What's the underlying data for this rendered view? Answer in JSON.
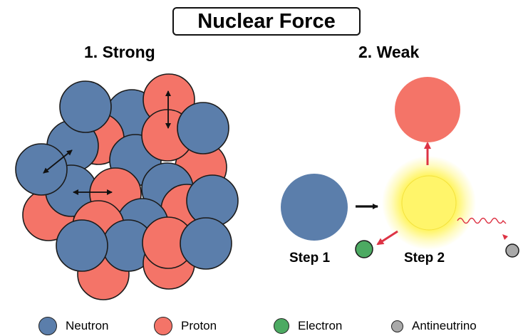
{
  "title": "Nuclear Force",
  "sections": {
    "strong": "1. Strong",
    "weak": "2. Weak"
  },
  "steps": {
    "step1": "Step 1",
    "step2": "Step 2"
  },
  "colors": {
    "neutron": "#5b7eab",
    "proton": "#f47468",
    "electron": "#4caa62",
    "antineutrino": "#a9a9a9",
    "glow": "#fff34d",
    "red_arrow": "#dd3344"
  },
  "legend": [
    {
      "label": "Neutron",
      "color": "#5b7eab"
    },
    {
      "label": "Proton",
      "color": "#f47468"
    },
    {
      "label": "Electron",
      "color": "#4caa62"
    },
    {
      "label": "Antineutrino",
      "color": "#a9a9a9"
    }
  ]
}
